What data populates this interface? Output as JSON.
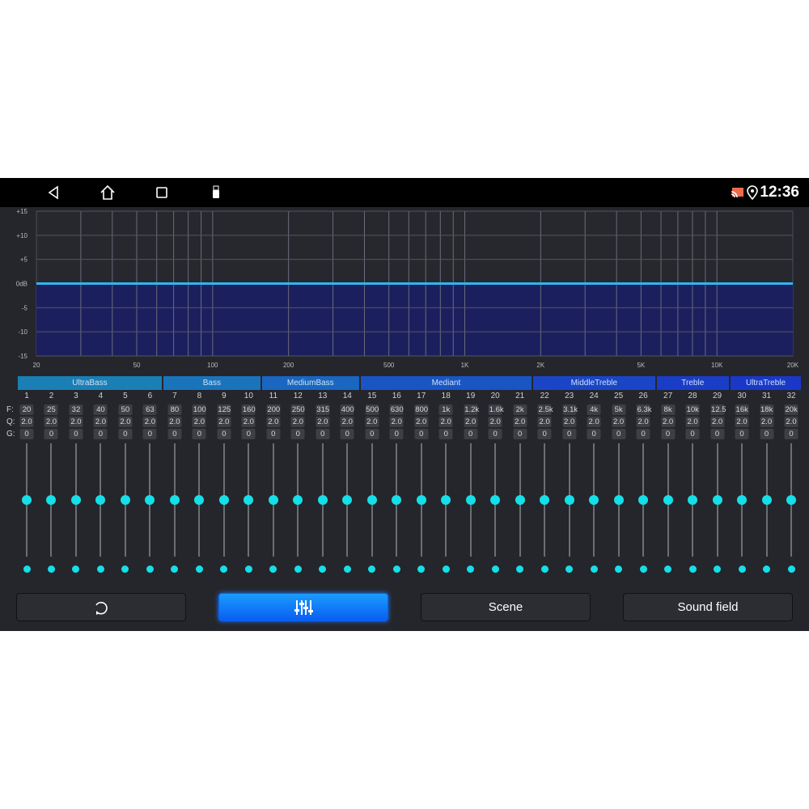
{
  "status_bar": {
    "time": "12:36",
    "icons": [
      "back-icon",
      "home-icon",
      "recents-icon",
      "usb-icon",
      "cast-icon",
      "location-icon"
    ]
  },
  "chart_data": {
    "type": "line",
    "x_scale": "log",
    "xlim": [
      20,
      20000
    ],
    "ylim": [
      -15,
      15
    ],
    "x_ticks": [
      "20",
      "50",
      "100",
      "200",
      "500",
      "1K",
      "2K",
      "5K",
      "10K",
      "20K"
    ],
    "x_tick_values": [
      20,
      50,
      100,
      200,
      500,
      1000,
      2000,
      5000,
      10000,
      20000
    ],
    "y_ticks": [
      "+15",
      "+10",
      "+5",
      "0dB",
      "-5",
      "-10",
      "-15"
    ],
    "y_tick_values": [
      15,
      10,
      5,
      0,
      -5,
      -10,
      -15
    ],
    "grid": true,
    "series": [
      {
        "x": [
          20,
          20000
        ],
        "y": [
          0,
          0
        ]
      }
    ],
    "colors": {
      "line": "#2fb6f0",
      "fill": "#1c1f5e"
    }
  },
  "bands": [
    {
      "label": "UltraBass",
      "channels": [
        1,
        6
      ]
    },
    {
      "label": "Bass",
      "channels": [
        7,
        10
      ]
    },
    {
      "label": "MediumBass",
      "channels": [
        11,
        14
      ]
    },
    {
      "label": "Mediant",
      "channels": [
        15,
        21
      ]
    },
    {
      "label": "MiddleTreble",
      "channels": [
        22,
        26
      ]
    },
    {
      "label": "Treble",
      "channels": [
        27,
        29
      ]
    },
    {
      "label": "UltraTreble",
      "channels": [
        30,
        32
      ]
    }
  ],
  "row_labels": {
    "f": "F:",
    "q": "Q:",
    "g": "G:"
  },
  "channels": {
    "numbers": [
      "1",
      "2",
      "3",
      "4",
      "5",
      "6",
      "7",
      "8",
      "9",
      "10",
      "11",
      "12",
      "13",
      "14",
      "15",
      "16",
      "17",
      "18",
      "19",
      "20",
      "21",
      "22",
      "23",
      "24",
      "25",
      "26",
      "27",
      "28",
      "29",
      "30",
      "31",
      "32"
    ],
    "freq": [
      "20",
      "25",
      "32",
      "40",
      "50",
      "63",
      "80",
      "100",
      "125",
      "160",
      "200",
      "250",
      "315",
      "400",
      "500",
      "630",
      "800",
      "1k",
      "1.2k",
      "1.6k",
      "2k",
      "2.5k",
      "3.1k",
      "4k",
      "5k",
      "6.3k",
      "8k",
      "10k",
      "12.5",
      "16k",
      "18k",
      "20k"
    ],
    "q": [
      "2.0",
      "2.0",
      "2.0",
      "2.0",
      "2.0",
      "2.0",
      "2.0",
      "2.0",
      "2.0",
      "2.0",
      "2.0",
      "2.0",
      "2.0",
      "2.0",
      "2.0",
      "2.0",
      "2.0",
      "2.0",
      "2.0",
      "2.0",
      "2.0",
      "2.0",
      "2.0",
      "2.0",
      "2.0",
      "2.0",
      "2.0",
      "2.0",
      "2.0",
      "2.0",
      "2.0",
      "2.0"
    ],
    "gain": [
      "0",
      "0",
      "0",
      "0",
      "0",
      "0",
      "0",
      "0",
      "0",
      "0",
      "0",
      "0",
      "0",
      "0",
      "0",
      "0",
      "0",
      "0",
      "0",
      "0",
      "0",
      "0",
      "0",
      "0",
      "0",
      "0",
      "0",
      "0",
      "0",
      "0",
      "0",
      "0"
    ],
    "gain_range": [
      -15,
      15
    ]
  },
  "buttons": {
    "reset_icon": "reset-icon",
    "eq_icon": "sliders-icon",
    "scene": "Scene",
    "sound_field": "Sound field",
    "active": "eq"
  },
  "colors": {
    "accent": "#15dfe8",
    "active_button": "#0a7cff"
  }
}
